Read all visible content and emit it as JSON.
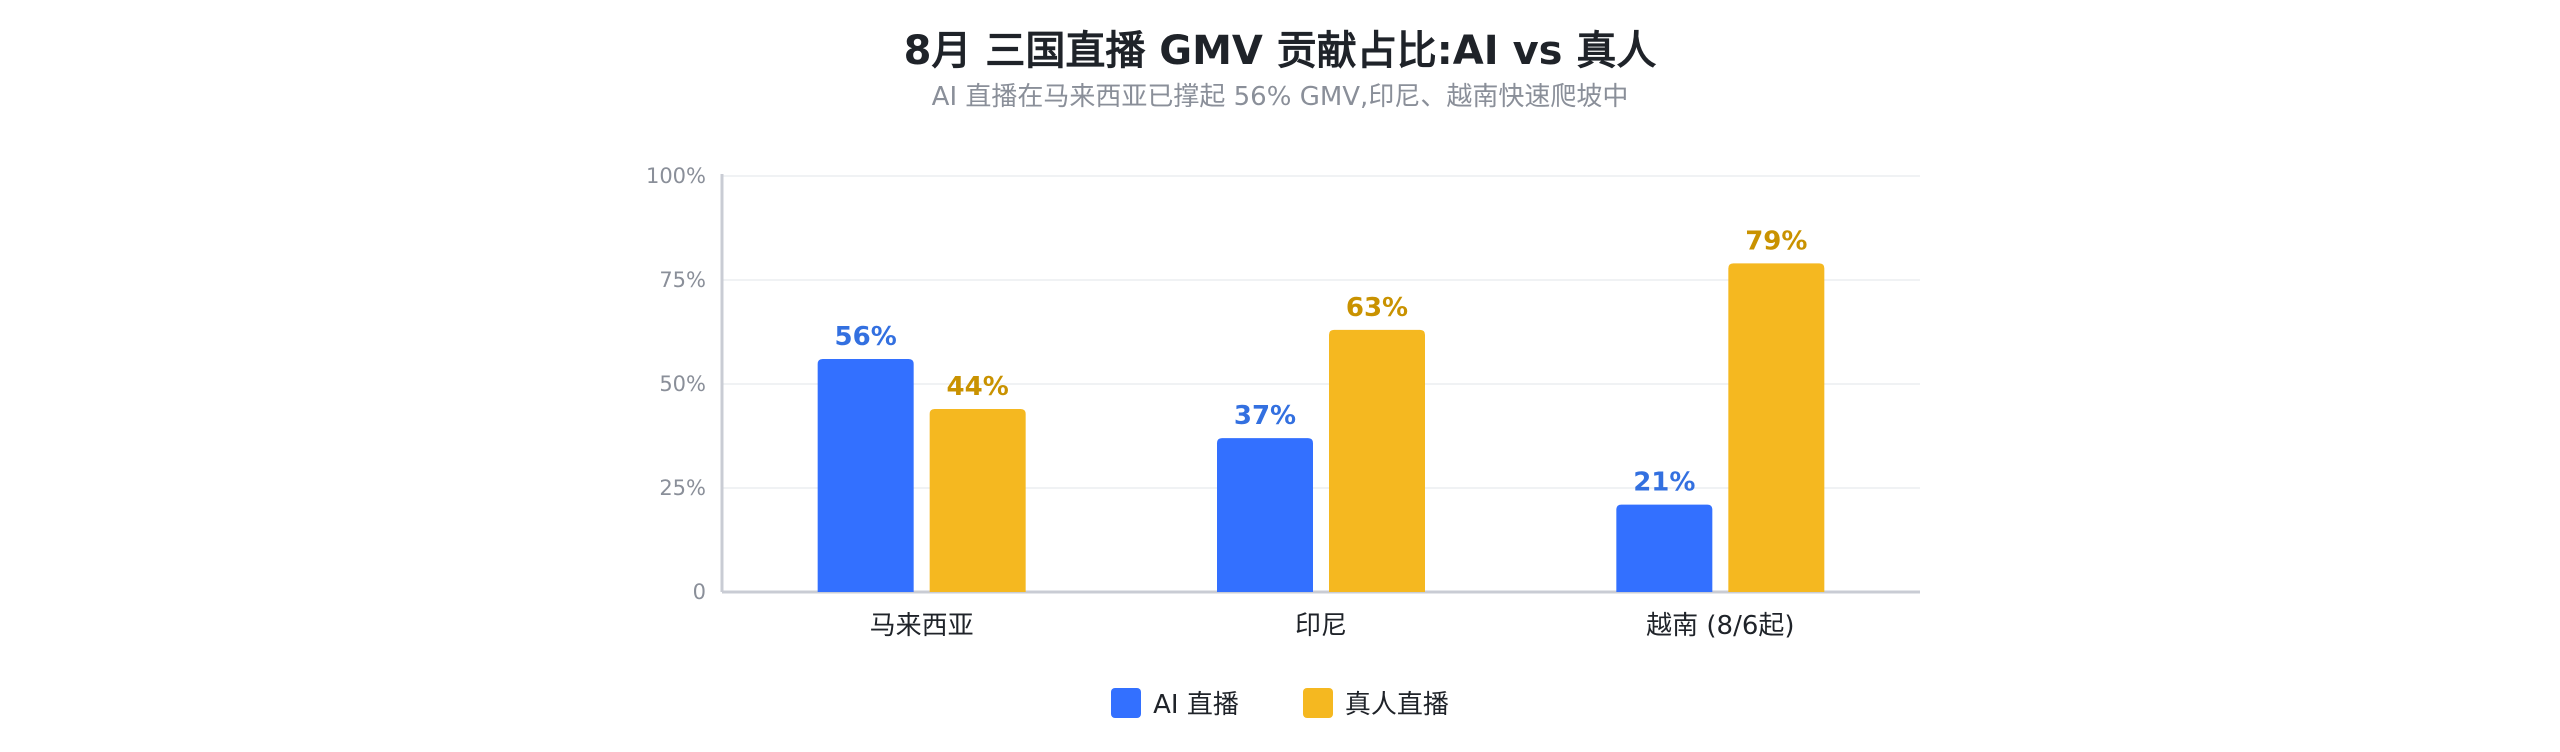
{
  "chart_data": {
    "type": "bar",
    "title": "8月 三国直播 GMV 贡献占比:AI vs 真人",
    "subtitle": "AI 直播在马来西亚已撑起 56% GMV,印尼、越南快速爬坡中",
    "categories": [
      "马来西亚",
      "印尼",
      "越南 (8/6起)"
    ],
    "series": [
      {
        "name": "AI 直播",
        "values": [
          56,
          37,
          21
        ],
        "color": "#3370ff",
        "label_color": "#3370e0"
      },
      {
        "name": "真人直播",
        "values": [
          44,
          63,
          79
        ],
        "color": "#f5b820",
        "label_color": "#c99200"
      }
    ],
    "value_suffix": "%",
    "ylim": [
      0,
      100
    ],
    "yticks": [
      0,
      25,
      50,
      75,
      100
    ],
    "ytick_labels": [
      "0",
      "25%",
      "50%",
      "75%",
      "100%"
    ],
    "grid": true,
    "legend_position": "bottom-center"
  }
}
